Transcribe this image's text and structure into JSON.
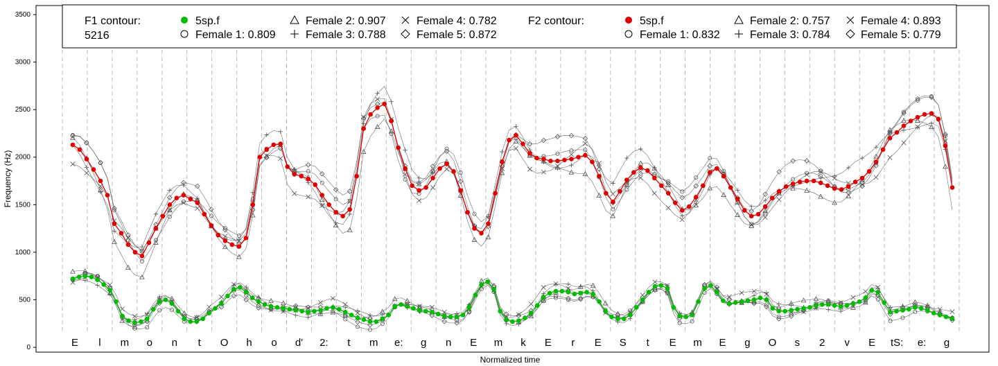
{
  "chart_data": {
    "type": "line",
    "xlabel": "Normalized time",
    "ylabel": "Frequency (Hz)",
    "ylim": [
      0,
      3600
    ],
    "yticks": [
      0,
      500,
      1000,
      1500,
      2000,
      2500,
      3000,
      3500
    ],
    "grid": "vertical dashed segment boundaries",
    "legend_position": "top",
    "segments": [
      "E",
      "l",
      "m",
      "o",
      "n",
      "t",
      "O",
      "h",
      "o",
      "d'",
      "2:",
      "t",
      "m",
      "e:",
      "g",
      "n",
      "E",
      "m",
      "k",
      "E",
      "r",
      "E",
      "S",
      "t",
      "E",
      "m",
      "E",
      "g",
      "O",
      "s",
      "2",
      "v",
      "E",
      "tS:",
      "e:",
      "g"
    ],
    "legend": {
      "f1_title": "F1 contour:",
      "f1_subtitle": "5216",
      "f1_main": "5sp.f",
      "f1_female1": "Female 1: 0.809",
      "f1_female2": "Female 2: 0.907",
      "f1_female3": "Female 3: 0.788",
      "f1_female4": "Female 4: 0.782",
      "f1_female5": "Female 5: 0.872",
      "f2_title": "F2 contour:",
      "f2_main": "5sp.f",
      "f2_female1": "Female 1: 0.832",
      "f2_female2": "Female 2: 0.757",
      "f2_female3": "Female 3: 0.784",
      "f2_female4": "Female 4: 0.893",
      "f2_female5": "Female 5: 0.779"
    },
    "colors": {
      "f1_main": "#00bb00",
      "f2_main": "#e00000",
      "reference": "#555555",
      "grid": "#bbbbbb"
    },
    "f2_main": [
      2130,
      2080,
      1980,
      1870,
      1750,
      1600,
      1300,
      1200,
      1080,
      1000,
      960,
      1100,
      1250,
      1380,
      1500,
      1570,
      1600,
      1560,
      1520,
      1400,
      1280,
      1180,
      1120,
      1080,
      1060,
      1150,
      1500,
      2000,
      2080,
      2130,
      2140,
      1900,
      1820,
      1800,
      1770,
      1710,
      1600,
      1500,
      1420,
      1380,
      1450,
      1800,
      2300,
      2450,
      2520,
      2560,
      2380,
      2100,
      1880,
      1700,
      1650,
      1680,
      1780,
      1880,
      1930,
      1850,
      1650,
      1420,
      1250,
      1200,
      1300,
      1620,
      1950,
      2180,
      2230,
      2140,
      2040,
      1990,
      1980,
      1960,
      1960,
      1970,
      1980,
      2000,
      2020,
      1950,
      1800,
      1620,
      1530,
      1640,
      1760,
      1840,
      1890,
      1860,
      1780,
      1700,
      1620,
      1520,
      1440,
      1480,
      1580,
      1700,
      1840,
      1880,
      1800,
      1680,
      1560,
      1440,
      1380,
      1400,
      1480,
      1570,
      1640,
      1690,
      1720,
      1740,
      1750,
      1750,
      1730,
      1700,
      1670,
      1660,
      1690,
      1740,
      1780,
      1850,
      1950,
      2080,
      2200,
      2260,
      2330,
      2380,
      2420,
      2450,
      2460,
      2400,
      2120,
      1680
    ],
    "f1_main": [
      720,
      740,
      750,
      740,
      710,
      660,
      600,
      480,
      330,
      280,
      260,
      270,
      300,
      400,
      480,
      500,
      460,
      380,
      300,
      270,
      270,
      300,
      360,
      410,
      460,
      540,
      610,
      630,
      580,
      520,
      480,
      450,
      430,
      420,
      410,
      400,
      390,
      380,
      370,
      380,
      390,
      410,
      420,
      400,
      370,
      340,
      310,
      290,
      270,
      270,
      300,
      340,
      430,
      450,
      430,
      410,
      390,
      380,
      370,
      350,
      330,
      320,
      320,
      340,
      420,
      550,
      660,
      690,
      610,
      380,
      290,
      270,
      280,
      310,
      360,
      440,
      530,
      570,
      590,
      590,
      580,
      560,
      570,
      580,
      560,
      480,
      380,
      320,
      300,
      300,
      340,
      420,
      500,
      580,
      640,
      650,
      620,
      420,
      330,
      320,
      340,
      480,
      620,
      650,
      580,
      490,
      460,
      470,
      480,
      490,
      500,
      520,
      500,
      410,
      380,
      380,
      390,
      400,
      410,
      420,
      440,
      450,
      450,
      440,
      430,
      440,
      460,
      480,
      520,
      600,
      580,
      470,
      370,
      380,
      390,
      400,
      420,
      410,
      390,
      360,
      340,
      320,
      300
    ]
  }
}
